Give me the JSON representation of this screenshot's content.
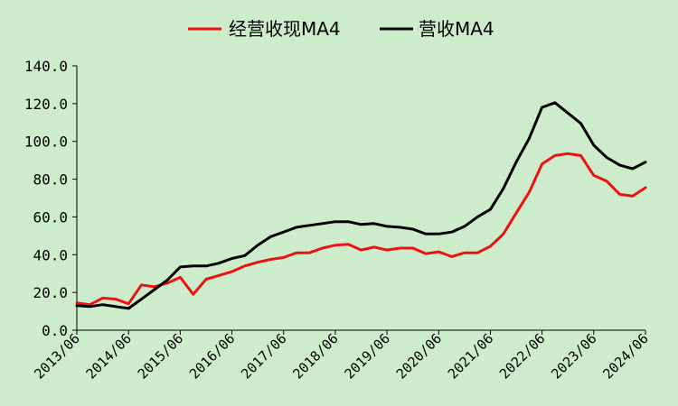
{
  "chart_data": {
    "type": "line",
    "title": "",
    "xlabel": "",
    "ylabel": "",
    "ylim": [
      0,
      140
    ],
    "yticks": [
      "0.0",
      "20.0",
      "40.0",
      "60.0",
      "80.0",
      "100.0",
      "120.0",
      "140.0"
    ],
    "xticks": [
      "2013/06",
      "2014/06",
      "2015/06",
      "2016/06",
      "2017/06",
      "2018/06",
      "2019/06",
      "2020/06",
      "2021/06",
      "2022/06",
      "2023/06",
      "2024/06"
    ],
    "x": [
      "2013/06",
      "2013/09",
      "2013/12",
      "2014/03",
      "2014/06",
      "2014/09",
      "2014/12",
      "2015/03",
      "2015/06",
      "2015/09",
      "2015/12",
      "2016/03",
      "2016/06",
      "2016/09",
      "2016/12",
      "2017/03",
      "2017/06",
      "2017/09",
      "2017/12",
      "2018/03",
      "2018/06",
      "2018/09",
      "2018/12",
      "2019/03",
      "2019/06",
      "2019/09",
      "2019/12",
      "2020/03",
      "2020/06",
      "2020/09",
      "2020/12",
      "2021/03",
      "2021/06",
      "2021/09",
      "2021/12",
      "2022/03",
      "2022/06",
      "2022/09",
      "2022/12",
      "2023/03",
      "2023/06",
      "2023/09",
      "2023/12",
      "2024/03",
      "2024/06"
    ],
    "legend_position": "top-center",
    "grid": false,
    "series": [
      {
        "name": "经营收现MA4",
        "color": "#ee1111",
        "values": [
          14.5,
          13.5,
          17,
          16.5,
          14,
          24,
          23,
          25,
          28,
          19,
          27,
          29,
          31,
          34,
          36,
          37.5,
          38.5,
          41,
          41,
          43.5,
          45,
          45.5,
          42.5,
          44,
          42.5,
          43.5,
          43.5,
          40.5,
          41.5,
          39,
          41,
          41,
          44.5,
          51,
          62,
          73,
          88,
          92.5,
          93.5,
          92.5,
          82,
          79,
          72,
          71,
          75.5
        ]
      },
      {
        "name": "营收MA4",
        "color": "#000000",
        "values": [
          13,
          12.5,
          13.5,
          12.5,
          11.5,
          16.5,
          21.5,
          26.5,
          33.5,
          34,
          34,
          35.5,
          38,
          39.5,
          45,
          49.5,
          52,
          54.5,
          55.5,
          56.5,
          57.5,
          57.5,
          56,
          56.5,
          55,
          54.5,
          53.5,
          51,
          51,
          52,
          55,
          60,
          64,
          75,
          89,
          101.5,
          118,
          120.5,
          115,
          109.5,
          98,
          91.5,
          87.5,
          85.5,
          89
        ]
      }
    ]
  }
}
